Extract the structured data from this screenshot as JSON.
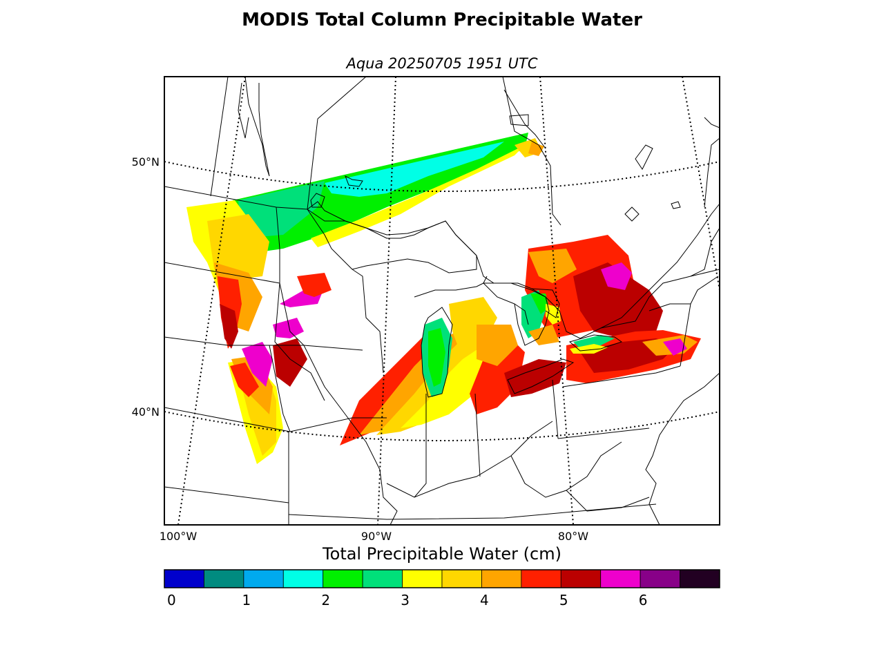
{
  "title": "MODIS Total Column Precipitable Water",
  "subtitle": "Aqua 20250705 1951 UTC",
  "map": {
    "lat_labels": [
      "50°N",
      "40°N"
    ],
    "lon_labels": [
      "100°W",
      "90°W",
      "80°W"
    ]
  },
  "colorbar": {
    "title": "Total Precipitable Water (cm)",
    "tick_labels": [
      "0",
      "1",
      "2",
      "3",
      "4",
      "5",
      "6"
    ],
    "colors": [
      "#0000cc",
      "#008b80",
      "#00aaee",
      "#00ffe6",
      "#00f000",
      "#00e07a",
      "#ffff00",
      "#ffd700",
      "#ffa500",
      "#ff2000",
      "#bb0000",
      "#ee00cc",
      "#880088",
      "#220022"
    ]
  }
}
